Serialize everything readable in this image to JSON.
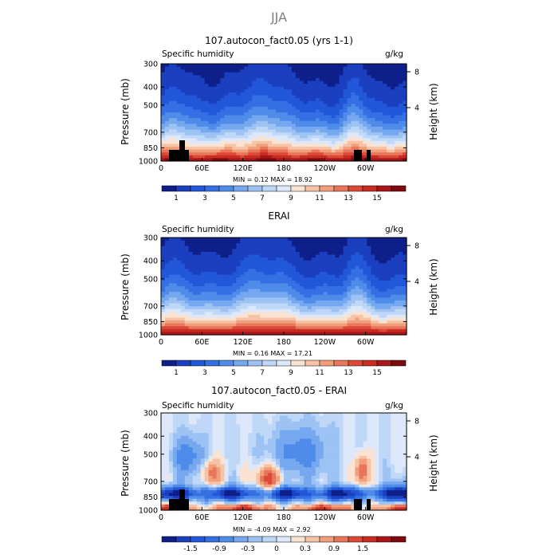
{
  "main_title": "JJA",
  "chart_data": [
    {
      "type": "heatmap",
      "title": "107.autocon_fact0.05 (yrs 1-1)",
      "left_label": "Specific humidity",
      "right_label": "g/kg",
      "ylabel": "Pressure (mb)",
      "ylabel_right": "Height (km)",
      "y_ticks": [
        "300",
        "400",
        "500",
        "700",
        "850",
        "1000"
      ],
      "y_right_ticks": [
        "8",
        "4"
      ],
      "x_ticks": [
        "0",
        "60E",
        "120E",
        "180",
        "120W",
        "60W"
      ],
      "stats": "MIN =    0.12   MAX =   18.92",
      "colorbar_ticks": [
        "1",
        "3",
        "5",
        "7",
        "9",
        "11",
        "13",
        "15"
      ],
      "colorbar_levels": [
        0,
        1,
        2,
        3,
        4,
        5,
        6,
        7,
        8,
        9,
        10,
        11,
        12,
        13,
        14,
        15,
        16
      ],
      "colors": [
        "#0f1f8a",
        "#1a3fbf",
        "#2157d8",
        "#3470e4",
        "#4f8cea",
        "#76a8ef",
        "#9dc2f4",
        "#c0d8f8",
        "#dde8fb",
        "#fbe3d2",
        "#f7c3a6",
        "#f19e7b",
        "#e8765a",
        "#dc4a37",
        "#c92c23",
        "#a8161a",
        "#7d0a0f"
      ],
      "field": "q_model"
    },
    {
      "type": "heatmap",
      "title": "ERAI",
      "left_label": "Specific humidity",
      "right_label": "g/kg",
      "ylabel": "Pressure (mb)",
      "ylabel_right": "Height (km)",
      "y_ticks": [
        "300",
        "400",
        "500",
        "700",
        "850",
        "1000"
      ],
      "y_right_ticks": [
        "8",
        "4"
      ],
      "x_ticks": [
        "0",
        "60E",
        "120E",
        "180",
        "120W",
        "60W"
      ],
      "stats": "MIN =    0.16   MAX =   17.21",
      "colorbar_ticks": [
        "1",
        "3",
        "5",
        "7",
        "9",
        "11",
        "13",
        "15"
      ],
      "colorbar_levels": [
        0,
        1,
        2,
        3,
        4,
        5,
        6,
        7,
        8,
        9,
        10,
        11,
        12,
        13,
        14,
        15,
        16
      ],
      "colors": [
        "#0f1f8a",
        "#1a3fbf",
        "#2157d8",
        "#3470e4",
        "#4f8cea",
        "#76a8ef",
        "#9dc2f4",
        "#c0d8f8",
        "#dde8fb",
        "#fbe3d2",
        "#f7c3a6",
        "#f19e7b",
        "#e8765a",
        "#dc4a37",
        "#c92c23",
        "#a8161a",
        "#7d0a0f"
      ],
      "field": "q_erai"
    },
    {
      "type": "heatmap",
      "title": "107.autocon_fact0.05 - ERAI",
      "left_label": "Specific humidity",
      "right_label": "g/kg",
      "ylabel": "Pressure (mb)",
      "ylabel_right": "Height (km)",
      "y_ticks": [
        "300",
        "400",
        "500",
        "700",
        "850",
        "1000"
      ],
      "y_right_ticks": [
        "8",
        "4"
      ],
      "x_ticks": [
        "0",
        "60E",
        "120E",
        "180",
        "120W",
        "60W"
      ],
      "stats": "MIN =   -4.09   MAX =    2.92",
      "colorbar_ticks": [
        "-1.5",
        "-0.9",
        "-0.3",
        "0",
        "0.3",
        "0.9",
        "1.5"
      ],
      "colorbar_levels": [
        -2.1,
        -1.8,
        -1.5,
        -1.2,
        -0.9,
        -0.6,
        -0.3,
        -0.1,
        0,
        0.1,
        0.3,
        0.6,
        0.9,
        1.2,
        1.5,
        1.8,
        2.1
      ],
      "colors": [
        "#0f1f8a",
        "#1a3fbf",
        "#2157d8",
        "#3470e4",
        "#4f8cea",
        "#76a8ef",
        "#9dc2f4",
        "#c0d8f8",
        "#dde8fb",
        "#fbe3d2",
        "#f7c3a6",
        "#f19e7b",
        "#e8765a",
        "#dc4a37",
        "#c92c23",
        "#a8161a",
        "#7d0a0f"
      ],
      "field": "diff"
    }
  ]
}
